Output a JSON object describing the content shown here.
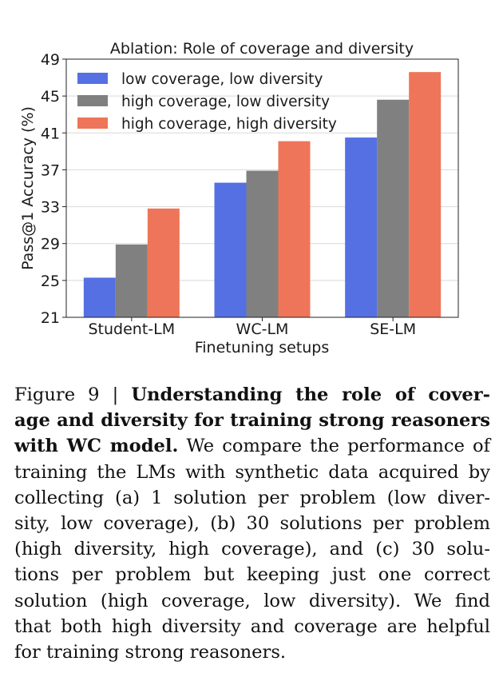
{
  "chart_data": {
    "type": "bar",
    "title": "Ablation: Role of coverage and diversity",
    "xlabel": "Finetuning setups",
    "ylabel": "Pass@1 Accuracy (%)",
    "categories": [
      "Student-LM",
      "WC-LM",
      "SE-LM"
    ],
    "ylim": [
      21,
      49
    ],
    "yticks": [
      "21",
      "25",
      "29",
      "33",
      "37",
      "41",
      "45",
      "49"
    ],
    "grid": true,
    "legend_position": "top-left",
    "series": [
      {
        "name": "low coverage, low diversity",
        "color": "#5470e2",
        "values": [
          25.3,
          35.6,
          40.5
        ]
      },
      {
        "name": "high coverage, low diversity",
        "color": "#808080",
        "values": [
          28.9,
          36.9,
          44.6
        ]
      },
      {
        "name": "high coverage, high diversity",
        "color": "#ee7559",
        "values": [
          32.8,
          40.1,
          47.6
        ]
      }
    ]
  },
  "caption": {
    "lines": [
      [
        {
          "t": "Figure 9 | ",
          "b": false
        },
        {
          "t": "Understanding the role of cover-",
          "b": true
        }
      ],
      [
        {
          "t": "age and diversity for training strong reasoners",
          "b": true
        }
      ],
      [
        {
          "t": "with WC model.",
          "b": true
        },
        {
          "t": " We compare the performance of",
          "b": false
        }
      ],
      [
        {
          "t": "training the LMs with synthetic data acquired by",
          "b": false
        }
      ],
      [
        {
          "t": "collecting (a) 1 solution per problem (low diver-",
          "b": false
        }
      ],
      [
        {
          "t": "sity, low coverage), (b) 30 solutions per problem",
          "b": false
        }
      ],
      [
        {
          "t": "(high diversity, high coverage), and (c) 30 solu-",
          "b": false
        }
      ],
      [
        {
          "t": "tions per problem but keeping just one correct",
          "b": false
        }
      ],
      [
        {
          "t": "solution (high coverage, low diversity). We find",
          "b": false
        }
      ],
      [
        {
          "t": "that both high diversity and coverage are helpful",
          "b": false
        }
      ],
      [
        {
          "t": "for training strong reasoners.",
          "b": false
        }
      ]
    ]
  }
}
